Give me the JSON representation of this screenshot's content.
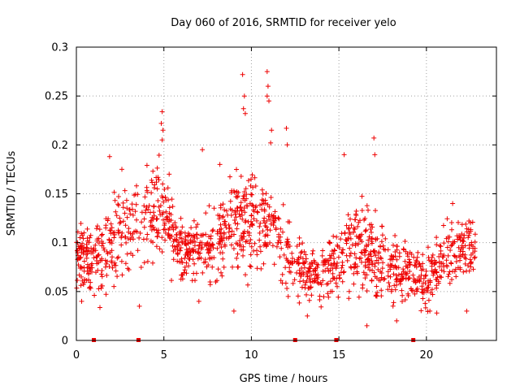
{
  "chart_data": {
    "type": "scatter",
    "title": "Day 060 of 2016, SRMTID for receiver yelo",
    "xlabel": "GPS time / hours",
    "ylabel": "SRMTID / TECUs",
    "xlim": [
      0,
      24
    ],
    "ylim": [
      0,
      0.3
    ],
    "xticks": [
      0,
      5,
      10,
      15,
      20
    ],
    "xtick_labels": [
      "0",
      "5",
      "10",
      "15",
      "20"
    ],
    "yticks": [
      0,
      0.05,
      0.1,
      0.15,
      0.2,
      0.25,
      0.3
    ],
    "ytick_labels": [
      "0",
      "0.05",
      "0.1",
      "0.15",
      "0.2",
      "0.25",
      "0.3"
    ],
    "grid": true,
    "marker": "plus",
    "color": "#ee0000",
    "data_gap_markers_x": [
      1.0,
      3.55,
      12.5,
      14.85,
      19.25
    ],
    "series": [
      {
        "name": "SRMTID",
        "hourly_mean": [
          0.085,
          0.075,
          0.1,
          0.11,
          0.13,
          0.13,
          0.09,
          0.095,
          0.1,
          0.12,
          0.12,
          0.125,
          0.085,
          0.07,
          0.065,
          0.085,
          0.1,
          0.09,
          0.07,
          0.07,
          0.06,
          0.08,
          0.095
        ],
        "hourly_spread": [
          0.025,
          0.03,
          0.035,
          0.035,
          0.04,
          0.04,
          0.02,
          0.025,
          0.03,
          0.04,
          0.04,
          0.035,
          0.03,
          0.02,
          0.02,
          0.03,
          0.035,
          0.03,
          0.025,
          0.02,
          0.02,
          0.025,
          0.025
        ],
        "points": [
          [
            9.5,
            0.272
          ],
          [
            9.6,
            0.25
          ],
          [
            9.55,
            0.237
          ],
          [
            9.65,
            0.232
          ],
          [
            10.9,
            0.275
          ],
          [
            10.95,
            0.26
          ],
          [
            10.9,
            0.25
          ],
          [
            11.0,
            0.245
          ],
          [
            4.9,
            0.234
          ],
          [
            4.85,
            0.222
          ],
          [
            4.95,
            0.215
          ],
          [
            4.9,
            0.205
          ],
          [
            11.15,
            0.215
          ],
          [
            11.1,
            0.202
          ],
          [
            17.0,
            0.207
          ],
          [
            17.05,
            0.19
          ],
          [
            12.0,
            0.217
          ],
          [
            12.05,
            0.2
          ],
          [
            7.2,
            0.195
          ],
          [
            15.3,
            0.19
          ],
          [
            1.9,
            0.188
          ],
          [
            2.6,
            0.175
          ],
          [
            5.3,
            0.17
          ],
          [
            8.2,
            0.18
          ],
          [
            9.0,
            0.03
          ],
          [
            7.0,
            0.04
          ],
          [
            12.1,
            0.045
          ],
          [
            13.2,
            0.025
          ],
          [
            16.6,
            0.015
          ],
          [
            18.3,
            0.02
          ],
          [
            20.2,
            0.03
          ],
          [
            3.6,
            0.035
          ],
          [
            0.3,
            0.04
          ],
          [
            22.3,
            0.03
          ],
          [
            14.9,
            0.055
          ],
          [
            21.5,
            0.14
          ]
        ]
      }
    ]
  }
}
